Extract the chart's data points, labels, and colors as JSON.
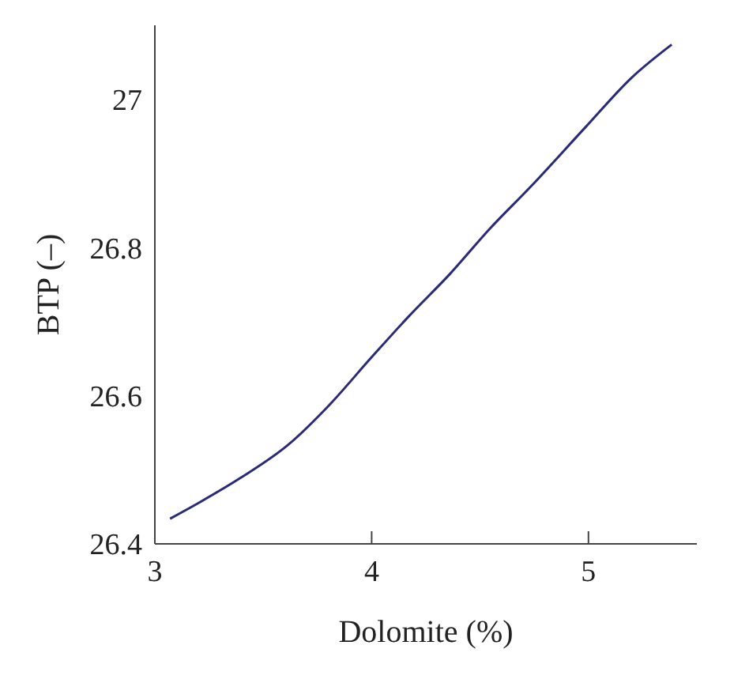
{
  "chart_data": {
    "type": "line",
    "xlabel": "Dolomite (%)",
    "ylabel": "BTP (–)",
    "xlim": [
      3,
      5.5
    ],
    "xticks": [
      3,
      4,
      5
    ],
    "ylim": [
      26.4,
      27.1
    ],
    "yticks": [
      26.4,
      26.6,
      26.8,
      27
    ],
    "grid": false,
    "legend": false,
    "marker": "none",
    "line_style": "solid",
    "series": [
      {
        "color": "#2b2a78",
        "x": [
          3.07,
          3.2,
          3.395,
          3.616,
          3.8,
          4.0,
          4.174,
          4.36,
          4.547,
          4.733,
          4.988,
          5.198,
          5.384
        ],
        "values": [
          26.434,
          26.455,
          26.489,
          26.534,
          26.586,
          26.652,
          26.708,
          26.764,
          26.826,
          26.882,
          26.963,
          27.029,
          27.074
        ]
      }
    ]
  }
}
